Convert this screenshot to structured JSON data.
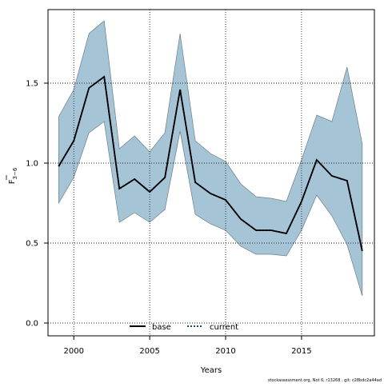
{
  "chart_data": {
    "type": "area",
    "xlabel": "Years",
    "ylabel_main": "F",
    "ylabel_sub": "3−6",
    "xlim": [
      1998.3,
      2019.8
    ],
    "ylim": [
      -0.08,
      1.96
    ],
    "xticks": [
      2000,
      2005,
      2010,
      2015
    ],
    "yticks": [
      0.0,
      0.5,
      1.0,
      1.5
    ],
    "ytick_labels": [
      "0.0",
      "0.5",
      "1.0",
      "1.5"
    ],
    "grid": true,
    "legend_placement": "bottom-center",
    "x": [
      1999,
      2000,
      2001,
      2002,
      2003,
      2004,
      2005,
      2006,
      2007,
      2008,
      2009,
      2010,
      2011,
      2012,
      2013,
      2014,
      2015,
      2016,
      2017,
      2018,
      2019
    ],
    "series": [
      {
        "name": "base",
        "style": "solid",
        "color": "#000000",
        "values": [
          0.98,
          1.14,
          1.47,
          1.54,
          0.84,
          0.9,
          0.82,
          0.91,
          1.46,
          0.88,
          0.81,
          0.77,
          0.65,
          0.58,
          0.58,
          0.56,
          0.76,
          1.02,
          0.92,
          0.89,
          0.45
        ]
      },
      {
        "name": "current",
        "style": "dotted",
        "color": "#1f4e79",
        "values": [
          0.98,
          1.14,
          1.47,
          1.54,
          0.84,
          0.9,
          0.82,
          0.91,
          1.46,
          0.88,
          0.81,
          0.77,
          0.65,
          0.58,
          0.58,
          0.56,
          0.76,
          1.02,
          0.92,
          0.89,
          0.45
        ]
      }
    ],
    "band": {
      "color": "#a5c5d7",
      "upper": [
        1.29,
        1.46,
        1.81,
        1.89,
        1.09,
        1.17,
        1.07,
        1.19,
        1.81,
        1.14,
        1.06,
        1.01,
        0.87,
        0.79,
        0.78,
        0.76,
        1.02,
        1.3,
        1.26,
        1.6,
        1.12
      ],
      "lower": [
        0.75,
        0.91,
        1.19,
        1.26,
        0.63,
        0.69,
        0.63,
        0.71,
        1.2,
        0.68,
        0.62,
        0.58,
        0.48,
        0.43,
        0.43,
        0.42,
        0.58,
        0.8,
        0.67,
        0.49,
        0.17
      ]
    }
  },
  "footer": "stockassessment.org, Not ß, r13268 , git: c28bdc2a44ad"
}
